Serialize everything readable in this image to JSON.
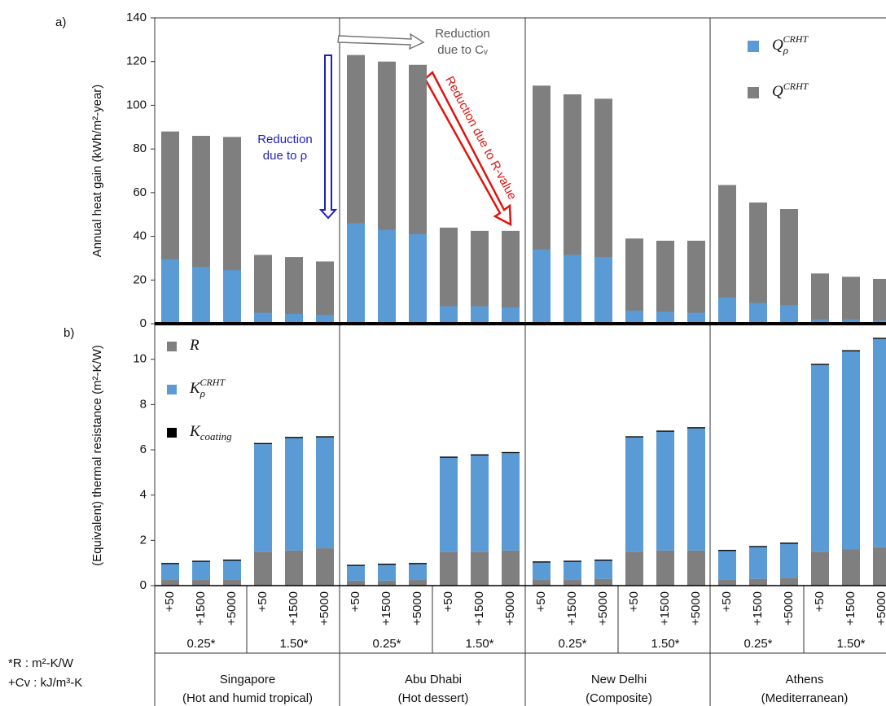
{
  "chart_data": [
    {
      "type": "bar",
      "barmode": "overlay",
      "panel_label": "a)",
      "y_label": "Annual heat gain (kWh/m²-year)",
      "ylim": [
        0,
        140
      ],
      "yticks": [
        0,
        20,
        40,
        60,
        80,
        100,
        120,
        140
      ],
      "series": [
        {
          "name": "Q",
          "name_sub": "ρ",
          "name_sup": "CRHT",
          "color": "#5b9bd5",
          "values": [
            29.5,
            26,
            24.5,
            5,
            4.5,
            4,
            46,
            43,
            41,
            8,
            8,
            7.5,
            34,
            31.5,
            30.5,
            6,
            5.5,
            5,
            12,
            9.5,
            8.5,
            2,
            2,
            1.5
          ]
        },
        {
          "name": "Q",
          "name_sup": "CRHT",
          "color": "#7f7f7f",
          "values": [
            88,
            86,
            85.5,
            31.5,
            30.5,
            28.5,
            123,
            120,
            118.5,
            44,
            42.5,
            42.5,
            109,
            105,
            103,
            39,
            38,
            38,
            63.5,
            55.5,
            52.5,
            23,
            21.5,
            20.5
          ]
        }
      ],
      "annotations": [
        {
          "lines": [
            "Reduction",
            "due to ρ"
          ],
          "color": "#1f1fbf"
        },
        {
          "lines": [
            "Reduction",
            "due to Cᵥ"
          ],
          "color": "#595959"
        },
        {
          "lines": [
            "Reduction due to R-value"
          ],
          "color": "#e0140f"
        }
      ]
    },
    {
      "type": "bar",
      "barmode": "stack",
      "panel_label": "b)",
      "y_label": "(Equivalent) thermal resistance (m²-K/W)",
      "ylim": [
        0,
        11.5
      ],
      "yticks": [
        0,
        2,
        4,
        6,
        8,
        10
      ],
      "categories": [
        "+50",
        "+1500",
        "+5000",
        "+50",
        "+1500",
        "+5000",
        "+50",
        "+1500",
        "+5000",
        "+50",
        "+1500",
        "+5000",
        "+50",
        "+1500",
        "+5000",
        "+50",
        "+1500",
        "+5000",
        "+50",
        "+1500",
        "+5000",
        "+50",
        "+1500",
        "+5000"
      ],
      "groups": [
        "0.25*",
        "1.50*",
        "0.25*",
        "1.50*",
        "0.25*",
        "1.50*",
        "0.25*",
        "1.50*"
      ],
      "cities": [
        {
          "name": "Singapore",
          "climate": "(Hot and humid tropical)"
        },
        {
          "name": "Abu Dhabi",
          "climate": "(Hot dessert)"
        },
        {
          "name": "New Delhi",
          "climate": "(Composite)"
        },
        {
          "name": "Athens",
          "climate": "(Mediterranean)"
        }
      ],
      "series": [
        {
          "name": "R",
          "color": "#7f7f7f",
          "values": [
            0.25,
            0.25,
            0.25,
            1.5,
            1.55,
            1.65,
            0.22,
            0.22,
            0.25,
            1.5,
            1.5,
            1.55,
            0.25,
            0.25,
            0.3,
            1.5,
            1.55,
            1.55,
            0.25,
            0.3,
            0.35,
            1.5,
            1.6,
            1.7
          ]
        },
        {
          "name": "K",
          "name_sub": "ρ",
          "name_sup": "CRHT",
          "color": "#5b9bd5",
          "values": [
            0.7,
            0.8,
            0.85,
            4.75,
            4.97,
            4.9,
            0.65,
            0.7,
            0.7,
            4.15,
            4.25,
            4.3,
            0.77,
            0.8,
            0.8,
            5.05,
            5.25,
            5.4,
            1.28,
            1.4,
            1.5,
            8.25,
            8.75,
            9.2
          ]
        },
        {
          "name": "K",
          "name_sub": "coating",
          "color": "#000000",
          "values": [
            0.05,
            0.05,
            0.05,
            0.05,
            0.05,
            0.05,
            0.05,
            0.05,
            0.05,
            0.05,
            0.05,
            0.05,
            0.05,
            0.05,
            0.05,
            0.05,
            0.05,
            0.05,
            0.05,
            0.05,
            0.05,
            0.05,
            0.05,
            0.05
          ]
        }
      ]
    }
  ],
  "footnotes": [
    "*R : m²-K/W",
    "+Cv : kJ/m³-K"
  ]
}
